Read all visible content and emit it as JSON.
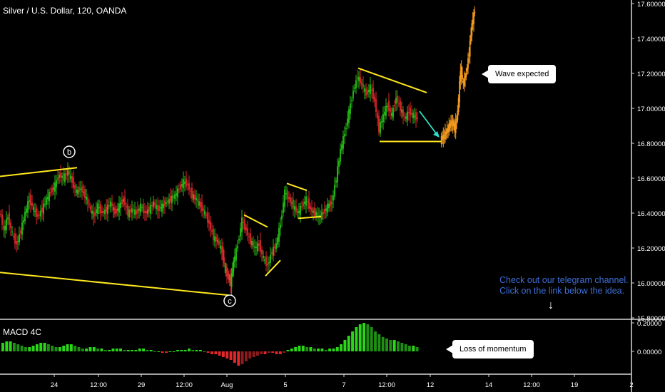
{
  "header": {
    "title": "Silver / U.S. Dollar, 120, OANDA"
  },
  "macd": {
    "title": "MACD 4C",
    "axis_labels": [
      "0.20000",
      "0.00000"
    ]
  },
  "annotations": {
    "wave_label": "Wave expected",
    "momentum_label": "Loss of momentum",
    "telegram_line1": "Check out our telegram channel.",
    "telegram_line2": "Click on the link below the idea.",
    "point_b": "b",
    "point_c": "c"
  },
  "colors": {
    "up": "#26c416",
    "down": "#e0272a",
    "projection": "#f39a1e",
    "trendline": "#ffe81f",
    "arrow": "#2fe0c8",
    "background": "#000000"
  },
  "chart_data": {
    "type": "candlestick",
    "title": "Silver / U.S. Dollar, 120, OANDA",
    "y_axis_labels": [
      "17.60000",
      "17.40000",
      "17.20000",
      "17.00000",
      "16.80000",
      "16.60000",
      "16.40000",
      "16.20000",
      "16.00000",
      "15.80000"
    ],
    "ylim": [
      15.75,
      17.62
    ],
    "x_tick_labels": [
      "24",
      "12:00",
      "29",
      "12:00",
      "Aug",
      "5",
      "7",
      "12:00",
      "12",
      "14",
      "12:00",
      "19",
      "2"
    ],
    "path_points": [
      [
        0,
        16.42
      ],
      [
        6,
        16.3
      ],
      [
        12,
        16.38
      ],
      [
        18,
        16.28
      ],
      [
        24,
        16.22
      ],
      [
        30,
        16.3
      ],
      [
        36,
        16.4
      ],
      [
        42,
        16.48
      ],
      [
        48,
        16.42
      ],
      [
        54,
        16.38
      ],
      [
        60,
        16.42
      ],
      [
        66,
        16.48
      ],
      [
        72,
        16.52
      ],
      [
        78,
        16.56
      ],
      [
        84,
        16.62
      ],
      [
        90,
        16.6
      ],
      [
        96,
        16.64
      ],
      [
        102,
        16.58
      ],
      [
        108,
        16.52
      ],
      [
        114,
        16.54
      ],
      [
        120,
        16.5
      ],
      [
        126,
        16.44
      ],
      [
        132,
        16.38
      ],
      [
        138,
        16.44
      ],
      [
        144,
        16.4
      ],
      [
        150,
        16.42
      ],
      [
        156,
        16.46
      ],
      [
        162,
        16.4
      ],
      [
        168,
        16.44
      ],
      [
        174,
        16.48
      ],
      [
        180,
        16.4
      ],
      [
        186,
        16.42
      ],
      [
        192,
        16.4
      ],
      [
        198,
        16.44
      ],
      [
        204,
        16.4
      ],
      [
        210,
        16.42
      ],
      [
        216,
        16.46
      ],
      [
        222,
        16.42
      ],
      [
        228,
        16.44
      ],
      [
        234,
        16.46
      ],
      [
        240,
        16.48
      ],
      [
        246,
        16.5
      ],
      [
        252,
        16.54
      ],
      [
        258,
        16.58
      ],
      [
        264,
        16.56
      ],
      [
        270,
        16.5
      ],
      [
        276,
        16.48
      ],
      [
        282,
        16.44
      ],
      [
        288,
        16.4
      ],
      [
        294,
        16.34
      ],
      [
        300,
        16.26
      ],
      [
        306,
        16.24
      ],
      [
        312,
        16.18
      ],
      [
        316,
        16.08
      ],
      [
        320,
        16.04
      ],
      [
        324,
        16.0
      ],
      [
        328,
        16.12
      ],
      [
        334,
        16.22
      ],
      [
        340,
        16.36
      ],
      [
        346,
        16.3
      ],
      [
        352,
        16.24
      ],
      [
        358,
        16.2
      ],
      [
        364,
        16.22
      ],
      [
        370,
        16.14
      ],
      [
        376,
        16.1
      ],
      [
        382,
        16.18
      ],
      [
        388,
        16.22
      ],
      [
        394,
        16.34
      ],
      [
        400,
        16.52
      ],
      [
        406,
        16.48
      ],
      [
        412,
        16.44
      ],
      [
        418,
        16.4
      ],
      [
        424,
        16.44
      ],
      [
        430,
        16.48
      ],
      [
        436,
        16.42
      ],
      [
        442,
        16.4
      ],
      [
        448,
        16.38
      ],
      [
        454,
        16.4
      ],
      [
        460,
        16.44
      ],
      [
        466,
        16.46
      ],
      [
        472,
        16.6
      ],
      [
        478,
        16.76
      ],
      [
        484,
        16.86
      ],
      [
        490,
        16.98
      ],
      [
        496,
        17.1
      ],
      [
        502,
        17.18
      ],
      [
        508,
        17.14
      ],
      [
        514,
        17.08
      ],
      [
        520,
        17.12
      ],
      [
        526,
        17.04
      ],
      [
        532,
        16.88
      ],
      [
        538,
        16.96
      ],
      [
        544,
        17.02
      ],
      [
        550,
        16.96
      ],
      [
        556,
        17.06
      ],
      [
        562,
        17.0
      ],
      [
        568,
        16.94
      ],
      [
        574,
        16.98
      ],
      [
        580,
        16.96
      ],
      [
        586,
        16.94
      ]
    ],
    "projection_points": [
      [
        618,
        16.82
      ],
      [
        622,
        16.84
      ],
      [
        626,
        16.86
      ],
      [
        630,
        16.9
      ],
      [
        634,
        16.92
      ],
      [
        638,
        16.88
      ],
      [
        642,
        16.98
      ],
      [
        646,
        17.22
      ],
      [
        650,
        17.14
      ],
      [
        654,
        17.2
      ],
      [
        658,
        17.32
      ],
      [
        662,
        17.48
      ],
      [
        666,
        17.56
      ]
    ],
    "trendlines": [
      [
        [
          0,
          16.61
        ],
        [
          108,
          16.66
        ]
      ],
      [
        [
          0,
          16.06
        ],
        [
          320,
          15.93
        ]
      ],
      [
        [
          342,
          16.39
        ],
        [
          375,
          16.32
        ]
      ],
      [
        [
          372,
          16.04
        ],
        [
          393,
          16.13
        ]
      ],
      [
        [
          402,
          16.57
        ],
        [
          430,
          16.53
        ]
      ],
      [
        [
          418,
          16.37
        ],
        [
          450,
          16.38
        ]
      ],
      [
        [
          502,
          17.23
        ],
        [
          598,
          17.09
        ]
      ],
      [
        [
          532,
          16.81
        ],
        [
          618,
          16.81
        ]
      ]
    ],
    "macd_values": [
      0.06,
      0.07,
      0.07,
      0.06,
      0.05,
      0.04,
      0.03,
      0.03,
      0.04,
      0.05,
      0.06,
      0.06,
      0.05,
      0.04,
      0.03,
      0.03,
      0.04,
      0.05,
      0.05,
      0.04,
      0.03,
      0.02,
      0.02,
      0.03,
      0.03,
      0.02,
      0.02,
      0.01,
      0.01,
      0.02,
      0.02,
      0.02,
      0.01,
      0.01,
      0.01,
      0.01,
      0.02,
      0.02,
      0.01,
      0.01,
      0.0,
      0.0,
      -0.01,
      -0.01,
      0.0,
      0.0,
      0.01,
      0.01,
      0.01,
      0.02,
      0.01,
      0.01,
      0.01,
      0.0,
      -0.01,
      -0.02,
      -0.02,
      -0.03,
      -0.04,
      -0.05,
      -0.06,
      -0.08,
      -0.1,
      -0.09,
      -0.07,
      -0.05,
      -0.04,
      -0.03,
      -0.02,
      -0.02,
      -0.01,
      -0.01,
      -0.02,
      -0.02,
      -0.01,
      0.01,
      0.02,
      0.03,
      0.04,
      0.04,
      0.03,
      0.03,
      0.02,
      0.02,
      0.02,
      0.01,
      0.02,
      0.02,
      0.03,
      0.05,
      0.08,
      0.11,
      0.14,
      0.17,
      0.19,
      0.2,
      0.19,
      0.17,
      0.14,
      0.12,
      0.1,
      0.09,
      0.08,
      0.08,
      0.07,
      0.06,
      0.05,
      0.04,
      0.04,
      0.03
    ]
  }
}
